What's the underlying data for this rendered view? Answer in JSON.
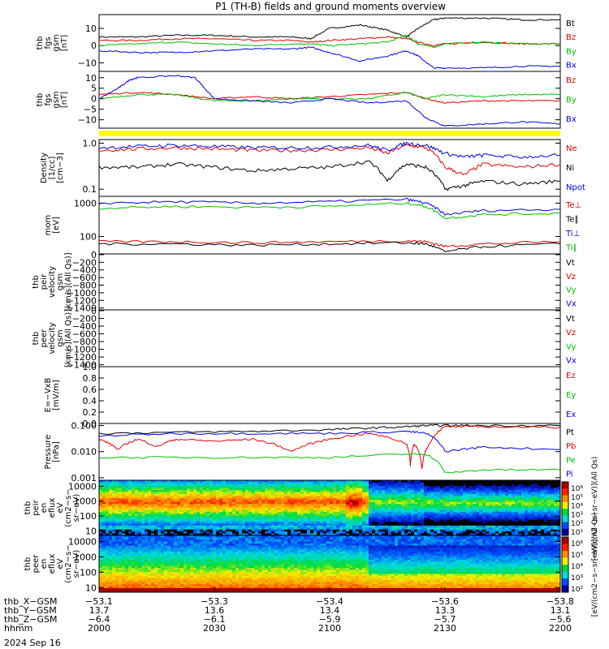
{
  "figure": {
    "title": "P1 (TH-B) fields and ground moments overview",
    "date_label": "2024 Sep 16",
    "colors": {
      "black": "#000000",
      "red": "#e00000",
      "green": "#00c000",
      "blue": "#0000e0",
      "yellow": "#ffff00"
    }
  },
  "chart_data": [
    {
      "id": "fgs",
      "type": "line",
      "ylabel": [
        "thb",
        "fgs",
        "gsm",
        "[nT]"
      ],
      "ylim": [
        -15,
        18
      ],
      "yticks": [
        {
          "v": 10,
          "label": "10"
        },
        {
          "v": 0,
          "label": "0"
        },
        {
          "v": -10,
          "label": "−10"
        }
      ],
      "legend": [
        "Bt",
        "Bz",
        "By",
        "Bx"
      ],
      "series": [
        {
          "name": "Bt",
          "color": "black",
          "x": [
            2000,
            2010,
            2020,
            2030,
            2040,
            2050,
            2055,
            2100,
            2108,
            2115,
            2120,
            2123,
            2127,
            2130,
            2140,
            2150,
            2200
          ],
          "y": [
            5,
            5,
            6,
            6,
            5,
            5,
            4,
            10,
            12,
            9,
            5,
            10,
            15,
            16,
            16,
            15,
            15
          ]
        },
        {
          "name": "Bz",
          "color": "red",
          "x": [
            2000,
            2010,
            2020,
            2030,
            2040,
            2050,
            2055,
            2100,
            2108,
            2115,
            2120,
            2123,
            2127,
            2130,
            2140,
            2150,
            2200
          ],
          "y": [
            3,
            3,
            4,
            4,
            3,
            3,
            2,
            3,
            4,
            5,
            4,
            2,
            0,
            1,
            2,
            1,
            1
          ]
        },
        {
          "name": "By",
          "color": "green",
          "x": [
            2000,
            2010,
            2020,
            2030,
            2040,
            2050,
            2055,
            2100,
            2108,
            2115,
            2120,
            2123,
            2127,
            2130,
            2140,
            2150,
            2200
          ],
          "y": [
            0,
            1,
            2,
            1,
            0,
            1,
            1,
            0,
            1,
            2,
            6,
            1,
            -1,
            1,
            2,
            1,
            1
          ]
        },
        {
          "name": "Bx",
          "color": "blue",
          "x": [
            2000,
            2010,
            2020,
            2030,
            2040,
            2050,
            2055,
            2100,
            2108,
            2115,
            2120,
            2123,
            2127,
            2130,
            2140,
            2150,
            2200
          ],
          "y": [
            -3,
            -4,
            -4,
            -3,
            -2,
            -2,
            -1,
            -4,
            -9,
            -6,
            -3,
            -6,
            -13,
            -13,
            -13,
            -12,
            -12
          ]
        }
      ]
    },
    {
      "id": "fgs_dsl",
      "type": "line",
      "ylabel": [
        "thb",
        "fgs",
        "gsm",
        "[nT]"
      ],
      "ylim": [
        -14,
        13
      ],
      "yticks": [
        {
          "v": 10,
          "label": "10"
        },
        {
          "v": 5,
          "label": "5"
        },
        {
          "v": 0,
          "label": "0"
        },
        {
          "v": -5,
          "label": "−5"
        },
        {
          "v": -10,
          "label": "−10"
        }
      ],
      "legend": [
        "Bz",
        "By",
        "Bx"
      ],
      "series": [
        {
          "name": "Bz",
          "color": "red",
          "x": [
            2000,
            2010,
            2020,
            2030,
            2040,
            2050,
            2100,
            2110,
            2120,
            2125,
            2130,
            2140,
            2150,
            2200
          ],
          "y": [
            2,
            3,
            2,
            0,
            1,
            0,
            1,
            2,
            3,
            0,
            -2,
            -1,
            -1,
            -1
          ]
        },
        {
          "name": "By",
          "color": "green",
          "x": [
            2000,
            2010,
            2020,
            2030,
            2040,
            2050,
            2100,
            2110,
            2120,
            2125,
            2130,
            2140,
            2150,
            2200
          ],
          "y": [
            0,
            2,
            2,
            -1,
            -1,
            0,
            0,
            0,
            3,
            0,
            2,
            1,
            2,
            2
          ]
        },
        {
          "name": "Bx",
          "color": "blue",
          "x": [
            2000,
            2005,
            2008,
            2010,
            2020,
            2025,
            2030,
            2040,
            2050,
            2100,
            2110,
            2120,
            2125,
            2130,
            2140,
            2150,
            2200
          ],
          "y": [
            0,
            5,
            9,
            10,
            11,
            10,
            0,
            -1,
            -2,
            0,
            -2,
            -1,
            -9,
            -13,
            -12,
            -11,
            -12
          ]
        }
      ]
    },
    {
      "id": "density",
      "type": "line",
      "ylog": true,
      "ylabel": [
        "Density",
        "[1/cc]",
        "[cm−3]"
      ],
      "ylim": [
        0.07,
        1.2
      ],
      "yticks": [
        {
          "v": 1.0,
          "label": "1.0"
        },
        {
          "v": 0.1,
          "label": "0.1"
        }
      ],
      "legend": [
        "Ne",
        "Ni",
        "Npot"
      ],
      "series": [
        {
          "name": "Ne",
          "color": "red",
          "x": [
            2000,
            2010,
            2020,
            2030,
            2040,
            2050,
            2100,
            2110,
            2115,
            2120,
            2125,
            2130,
            2135,
            2140,
            2150,
            2200
          ],
          "y": [
            0.7,
            0.75,
            0.8,
            0.75,
            0.7,
            0.7,
            0.72,
            0.8,
            0.6,
            0.9,
            0.8,
            0.3,
            0.2,
            0.35,
            0.3,
            0.35
          ]
        },
        {
          "name": "Ni",
          "color": "black",
          "x": [
            2000,
            2010,
            2020,
            2030,
            2040,
            2050,
            2100,
            2110,
            2115,
            2120,
            2125,
            2130,
            2135,
            2140,
            2150,
            2200
          ],
          "y": [
            0.3,
            0.3,
            0.35,
            0.3,
            0.25,
            0.28,
            0.3,
            0.4,
            0.15,
            0.35,
            0.3,
            0.1,
            0.12,
            0.15,
            0.13,
            0.15
          ]
        },
        {
          "name": "Npot",
          "color": "blue",
          "x": [
            2000,
            2010,
            2020,
            2030,
            2040,
            2050,
            2100,
            2110,
            2115,
            2120,
            2125,
            2130,
            2135,
            2140,
            2150,
            2200
          ],
          "y": [
            0.8,
            0.85,
            0.9,
            0.85,
            0.8,
            0.8,
            0.82,
            0.9,
            0.7,
            1.0,
            0.9,
            0.6,
            0.5,
            0.55,
            0.5,
            0.55
          ]
        }
      ]
    },
    {
      "id": "temperature",
      "type": "line",
      "ylog": true,
      "ylabel": [
        "mom",
        "[eV]"
      ],
      "ylim": [
        30,
        1600
      ],
      "yticks": [
        {
          "v": 1000,
          "label": "1000"
        },
        {
          "v": 100,
          "label": "100"
        }
      ],
      "legend": [
        "Te⊥",
        "Te∥",
        "Ti⊥",
        "Ti∥"
      ],
      "series": [
        {
          "name": "Te⊥",
          "color": "red",
          "x": [
            2000,
            2020,
            2040,
            2100,
            2120,
            2125,
            2130,
            2140,
            2200
          ],
          "y": [
            70,
            70,
            65,
            70,
            75,
            70,
            50,
            60,
            70
          ]
        },
        {
          "name": "Te∥",
          "color": "black",
          "x": [
            2000,
            2020,
            2040,
            2100,
            2120,
            2125,
            2130,
            2140,
            2200
          ],
          "y": [
            60,
            60,
            55,
            60,
            65,
            60,
            35,
            50,
            60
          ]
        },
        {
          "name": "Ti⊥",
          "color": "blue",
          "x": [
            2000,
            2020,
            2040,
            2100,
            2120,
            2125,
            2130,
            2140,
            2200
          ],
          "y": [
            1000,
            1100,
            1000,
            1100,
            1300,
            1000,
            450,
            600,
            650
          ]
        },
        {
          "name": "Ti∥",
          "color": "green",
          "x": [
            2000,
            2020,
            2040,
            2100,
            2120,
            2125,
            2130,
            2140,
            2200
          ],
          "y": [
            700,
            800,
            750,
            800,
            1000,
            800,
            350,
            450,
            500
          ]
        }
      ]
    },
    {
      "id": "peir_velocity",
      "type": "line",
      "ylabel": [
        "thb",
        "peir",
        "velocity",
        "gsm",
        "[km/s](All Qs)]"
      ],
      "ylim": [
        -1450,
        20
      ],
      "yticks": [
        {
          "v": 0,
          "label": "0"
        },
        {
          "v": -200,
          "label": "−200"
        },
        {
          "v": -400,
          "label": "−400"
        },
        {
          "v": -600,
          "label": "−600"
        },
        {
          "v": -800,
          "label": "−800"
        },
        {
          "v": -1000,
          "label": "−1000"
        },
        {
          "v": -1200,
          "label": "−1200"
        },
        {
          "v": -1400,
          "label": "−1400"
        }
      ],
      "legend": [
        "Vt",
        "Vz",
        "Vy",
        "Vx"
      ],
      "series": []
    },
    {
      "id": "peer_velocity",
      "type": "line",
      "ylabel": [
        "thb",
        "peer",
        "velocity",
        "gsm",
        "[km/s](All Qs)]"
      ],
      "ylim": [
        -1450,
        20
      ],
      "yticks": [
        {
          "v": 0,
          "label": "0"
        },
        {
          "v": -200,
          "label": "−200"
        },
        {
          "v": -400,
          "label": "−400"
        },
        {
          "v": -600,
          "label": "−600"
        },
        {
          "v": -800,
          "label": "−800"
        },
        {
          "v": -1000,
          "label": "−1000"
        },
        {
          "v": -1200,
          "label": "−1200"
        },
        {
          "v": -1400,
          "label": "−1400"
        }
      ],
      "legend": [
        "Vt",
        "Vz",
        "Vy",
        "Vx"
      ],
      "series": []
    },
    {
      "id": "efield",
      "type": "line",
      "ylabel": [
        "E=−VxB",
        "[mV/m]"
      ],
      "ylim": [
        0,
        1
      ],
      "yticks": [
        {
          "v": 1.0,
          "label": "1.0"
        },
        {
          "v": 0.8,
          "label": "0.8"
        },
        {
          "v": 0.6,
          "label": "0.6"
        },
        {
          "v": 0.4,
          "label": "0.4"
        },
        {
          "v": 0.2,
          "label": "0.2"
        },
        {
          "v": 0.0,
          "label": "0.0"
        }
      ],
      "legend": [
        "Ez",
        "Ey",
        "Ex"
      ],
      "series": []
    },
    {
      "id": "pressure",
      "type": "line",
      "ylog": true,
      "ylabel": [
        "Pressure",
        "[nPa]"
      ],
      "ylim": [
        0.0008,
        0.12
      ],
      "yticks": [
        {
          "v": 0.1,
          "label": "0.100"
        },
        {
          "v": 0.01,
          "label": "0.010"
        },
        {
          "v": 0.001,
          "label": "0.001"
        }
      ],
      "legend": [
        "Pt",
        "Pb",
        "Pe",
        "Pi"
      ],
      "series": [
        {
          "name": "Pt",
          "color": "black",
          "x": [
            2000,
            2020,
            2040,
            2100,
            2110,
            2120,
            2125,
            2130,
            2140,
            2200
          ],
          "y": [
            0.05,
            0.055,
            0.06,
            0.07,
            0.08,
            0.09,
            0.1,
            0.1,
            0.1,
            0.1
          ]
        },
        {
          "name": "Pb",
          "color": "red",
          "x": [
            2000,
            2005,
            2010,
            2015,
            2020,
            2030,
            2040,
            2050,
            2100,
            2110,
            2120,
            2121,
            2122,
            2124,
            2126,
            2130,
            2140,
            2200
          ],
          "y": [
            0.03,
            0.012,
            0.03,
            0.015,
            0.03,
            0.025,
            0.03,
            0.01,
            0.03,
            0.05,
            0.02,
            0.003,
            0.02,
            0.002,
            0.02,
            0.09,
            0.09,
            0.085
          ]
        },
        {
          "name": "Pe",
          "color": "green",
          "x": [
            2000,
            2020,
            2040,
            2100,
            2120,
            2125,
            2130,
            2140,
            2200
          ],
          "y": [
            0.006,
            0.006,
            0.006,
            0.006,
            0.008,
            0.008,
            0.0015,
            0.002,
            0.002
          ]
        },
        {
          "name": "Pi",
          "color": "blue",
          "x": [
            2000,
            2020,
            2040,
            2100,
            2120,
            2125,
            2130,
            2140,
            2200
          ],
          "y": [
            0.04,
            0.05,
            0.05,
            0.05,
            0.06,
            0.05,
            0.01,
            0.015,
            0.012
          ]
        }
      ]
    },
    {
      "id": "peir_spectrogram",
      "type": "heatmap",
      "ylog": true,
      "ylabel": [
        "thb",
        "peir",
        "en",
        "eflux",
        "eV",
        "(cm2−s−",
        "sr−eV)"
      ],
      "ylim": [
        5,
        25000
      ],
      "yticks": [
        {
          "v": 10000,
          "label": "10000"
        },
        {
          "v": 1000,
          "label": "1000"
        },
        {
          "v": 100,
          "label": "100"
        },
        {
          "v": 10,
          "label": "10"
        }
      ]
    },
    {
      "id": "peer_spectrogram",
      "type": "heatmap",
      "ylog": true,
      "ylabel": [
        "thb",
        "peer",
        "en",
        "eflux",
        "eV",
        "(cm2−s−",
        "sr−eV)"
      ],
      "ylim": [
        5,
        25000
      ],
      "yticks": [
        {
          "v": 10000,
          "label": "10000"
        },
        {
          "v": 1000,
          "label": "1000"
        },
        {
          "v": 100,
          "label": "100"
        },
        {
          "v": 10,
          "label": "10"
        }
      ]
    }
  ],
  "colorbars": {
    "upper_label": "[eV/(cm2−s−sr−eV)](All Qs)",
    "lower_label": "[eV/(cm2−s−sr−eV)](All Qs)",
    "upper_ticks": [
      "10⁶",
      "10⁵",
      "10⁴",
      "10³",
      "10²",
      "10¹"
    ],
    "lower_ticks": [
      "10⁶",
      "10⁵",
      "10⁴",
      "10³",
      "10²"
    ]
  },
  "x_axis": {
    "rows": [
      {
        "label": "thb_X−GSM",
        "values": [
          "−53.1",
          "−53.3",
          "−53.4",
          "−53.6",
          "−53.8"
        ]
      },
      {
        "label": "thb_Y−GSM",
        "values": [
          "13.7",
          "13.6",
          "13.4",
          "13.3",
          "13.1"
        ]
      },
      {
        "label": "thb_Z−GSM",
        "values": [
          "−6.4",
          "−6.1",
          "−5.9",
          "−5.7",
          "−5.6"
        ]
      },
      {
        "label": "hhmm",
        "values": [
          "2000",
          "2030",
          "2100",
          "2130",
          "2200"
        ]
      }
    ]
  }
}
